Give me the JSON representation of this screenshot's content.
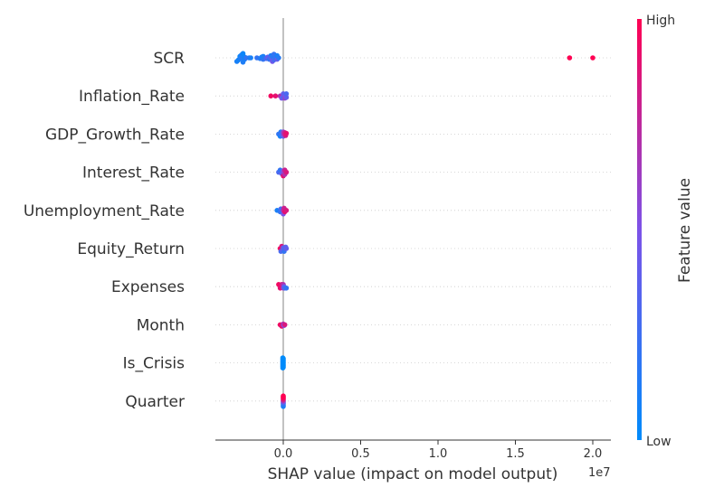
{
  "chart_data": {
    "type": "scatter",
    "subtype": "shap-beeswarm",
    "xlabel": "SHAP value (impact on model output)",
    "x_offset_text": "1e7",
    "x_ticks": [
      0,
      0.5,
      1.0,
      1.5,
      2.0
    ],
    "x_tick_labels": [
      "0.0",
      "0.5",
      "1.0",
      "1.5",
      "2.0"
    ],
    "xlim": [
      -0.45,
      2.1
    ],
    "x_unit_scale": "1e7",
    "colorbar": {
      "label": "Feature value",
      "high": "High",
      "low": "Low",
      "colors": {
        "low": "#008bfb",
        "mid": "#7c52e8",
        "high": "#ff0052"
      }
    },
    "grid": false,
    "features": [
      {
        "name": "SCR",
        "points": [
          {
            "x": -0.3,
            "y": 0.5,
            "v": 0.1
          },
          {
            "x": -0.29,
            "y": 0.3,
            "v": 0.08
          },
          {
            "x": -0.28,
            "y": -0.2,
            "v": 0.05
          },
          {
            "x": -0.28,
            "y": 0.1,
            "v": 0.1
          },
          {
            "x": -0.27,
            "y": 0.0,
            "v": 0.15
          },
          {
            "x": -0.27,
            "y": -0.4,
            "v": 0.1
          },
          {
            "x": -0.26,
            "y": 0.6,
            "v": 0.12
          },
          {
            "x": -0.26,
            "y": -0.6,
            "v": 0.05
          },
          {
            "x": -0.25,
            "y": 0.2,
            "v": 0.1
          },
          {
            "x": -0.25,
            "y": -0.1,
            "v": 0.05
          },
          {
            "x": -0.24,
            "y": 0.0,
            "v": 0.2
          },
          {
            "x": -0.22,
            "y": 0.0,
            "v": 0.15
          },
          {
            "x": -0.21,
            "y": 0.0,
            "v": 0.1
          },
          {
            "x": -0.17,
            "y": 0.0,
            "v": 0.2
          },
          {
            "x": -0.15,
            "y": 0.1,
            "v": 0.15
          },
          {
            "x": -0.14,
            "y": -0.1,
            "v": 0.1
          },
          {
            "x": -0.13,
            "y": 0.2,
            "v": 0.2
          },
          {
            "x": -0.13,
            "y": -0.2,
            "v": 0.1
          },
          {
            "x": -0.12,
            "y": 0.0,
            "v": 0.15
          },
          {
            "x": -0.11,
            "y": 0.1,
            "v": 0.3
          },
          {
            "x": -0.1,
            "y": -0.1,
            "v": 0.4
          },
          {
            "x": -0.09,
            "y": 0.2,
            "v": 0.2
          },
          {
            "x": -0.08,
            "y": -0.3,
            "v": 0.1
          },
          {
            "x": -0.08,
            "y": 0.0,
            "v": 0.35
          },
          {
            "x": -0.07,
            "y": 0.5,
            "v": 0.45
          },
          {
            "x": -0.07,
            "y": -0.2,
            "v": 0.15
          },
          {
            "x": -0.06,
            "y": 0.3,
            "v": 0.3
          },
          {
            "x": -0.06,
            "y": -0.5,
            "v": 0.2
          },
          {
            "x": -0.05,
            "y": 0.0,
            "v": 0.2
          },
          {
            "x": -0.04,
            "y": 0.2,
            "v": 0.4
          },
          {
            "x": -0.04,
            "y": -0.3,
            "v": 0.1
          },
          {
            "x": -0.03,
            "y": 0.0,
            "v": 0.15
          },
          {
            "x": 1.85,
            "y": 0.0,
            "v": 1.0
          },
          {
            "x": 2.0,
            "y": 0.0,
            "v": 1.0
          }
        ]
      },
      {
        "name": "Inflation_Rate",
        "points": [
          {
            "x": -0.08,
            "y": 0.0,
            "v": 0.95
          },
          {
            "x": -0.05,
            "y": 0.0,
            "v": 0.9
          },
          {
            "x": -0.02,
            "y": 0.0,
            "v": 0.7
          },
          {
            "x": -0.01,
            "y": 0.3,
            "v": 0.5
          },
          {
            "x": 0.0,
            "y": -0.3,
            "v": 0.4
          },
          {
            "x": 0.0,
            "y": 0.2,
            "v": 0.3
          },
          {
            "x": 0.005,
            "y": -0.1,
            "v": 0.45
          },
          {
            "x": 0.01,
            "y": 0.3,
            "v": 0.6
          },
          {
            "x": 0.01,
            "y": -0.2,
            "v": 0.35
          },
          {
            "x": 0.015,
            "y": 0.0,
            "v": 0.5
          },
          {
            "x": 0.02,
            "y": 0.2,
            "v": 0.4
          },
          {
            "x": 0.02,
            "y": -0.3,
            "v": 0.3
          }
        ]
      },
      {
        "name": "GDP_Growth_Rate",
        "points": [
          {
            "x": -0.03,
            "y": 0.0,
            "v": 0.2
          },
          {
            "x": -0.02,
            "y": 0.3,
            "v": 0.1
          },
          {
            "x": -0.015,
            "y": -0.3,
            "v": 0.15
          },
          {
            "x": -0.01,
            "y": 0.0,
            "v": 0.3
          },
          {
            "x": 0.0,
            "y": 0.3,
            "v": 0.4
          },
          {
            "x": 0.0,
            "y": -0.3,
            "v": 0.6
          },
          {
            "x": 0.005,
            "y": 0.0,
            "v": 0.7
          },
          {
            "x": 0.01,
            "y": -0.2,
            "v": 0.8
          },
          {
            "x": 0.015,
            "y": 0.2,
            "v": 0.85
          },
          {
            "x": 0.02,
            "y": -0.1,
            "v": 0.9
          }
        ]
      },
      {
        "name": "Interest_Rate",
        "points": [
          {
            "x": -0.03,
            "y": 0.0,
            "v": 0.3
          },
          {
            "x": -0.02,
            "y": -0.3,
            "v": 0.2
          },
          {
            "x": -0.01,
            "y": 0.2,
            "v": 0.4
          },
          {
            "x": 0.0,
            "y": 0.5,
            "v": 0.9
          },
          {
            "x": 0.0,
            "y": -0.2,
            "v": 0.5
          },
          {
            "x": 0.005,
            "y": 0.0,
            "v": 0.6
          },
          {
            "x": 0.01,
            "y": 0.3,
            "v": 0.7
          },
          {
            "x": 0.01,
            "y": -0.3,
            "v": 0.8
          },
          {
            "x": 0.02,
            "y": 0.0,
            "v": 0.85
          }
        ]
      },
      {
        "name": "Unemployment_Rate",
        "points": [
          {
            "x": -0.04,
            "y": 0.0,
            "v": 0.1
          },
          {
            "x": -0.02,
            "y": 0.2,
            "v": 0.2
          },
          {
            "x": -0.015,
            "y": -0.2,
            "v": 0.3
          },
          {
            "x": 0.0,
            "y": 0.5,
            "v": 0.5
          },
          {
            "x": 0.0,
            "y": 0.0,
            "v": 0.7
          },
          {
            "x": 0.005,
            "y": -0.3,
            "v": 0.8
          },
          {
            "x": 0.01,
            "y": 0.2,
            "v": 0.9
          },
          {
            "x": 0.02,
            "y": 0.0,
            "v": 0.85
          }
        ]
      },
      {
        "name": "Equity_Return",
        "points": [
          {
            "x": -0.02,
            "y": 0.0,
            "v": 0.95
          },
          {
            "x": -0.015,
            "y": 0.4,
            "v": 0.3
          },
          {
            "x": -0.01,
            "y": -0.3,
            "v": 0.85
          },
          {
            "x": 0.0,
            "y": 0.2,
            "v": 0.5
          },
          {
            "x": 0.0,
            "y": -0.1,
            "v": 0.4
          },
          {
            "x": 0.005,
            "y": 0.4,
            "v": 0.2
          },
          {
            "x": 0.01,
            "y": 0.0,
            "v": 0.3
          },
          {
            "x": 0.015,
            "y": -0.2,
            "v": 0.35
          },
          {
            "x": 0.02,
            "y": 0.0,
            "v": 0.4
          }
        ]
      },
      {
        "name": "Expenses",
        "points": [
          {
            "x": -0.03,
            "y": -0.3,
            "v": 0.95
          },
          {
            "x": -0.02,
            "y": 0.2,
            "v": 0.9
          },
          {
            "x": -0.01,
            "y": -0.3,
            "v": 0.85
          },
          {
            "x": 0.0,
            "y": 0.2,
            "v": 0.6
          },
          {
            "x": 0.0,
            "y": -0.3,
            "v": 0.7
          },
          {
            "x": 0.005,
            "y": 0.0,
            "v": 0.4
          },
          {
            "x": 0.01,
            "y": 0.2,
            "v": 0.3
          },
          {
            "x": 0.02,
            "y": 0.2,
            "v": 0.2
          }
        ]
      },
      {
        "name": "Month",
        "points": [
          {
            "x": -0.02,
            "y": 0.0,
            "v": 0.95
          },
          {
            "x": -0.01,
            "y": 0.2,
            "v": 0.9
          },
          {
            "x": 0.0,
            "y": -0.1,
            "v": 0.7
          },
          {
            "x": 0.005,
            "y": 0.1,
            "v": 0.5
          },
          {
            "x": 0.01,
            "y": 0.0,
            "v": 0.85
          }
        ]
      },
      {
        "name": "Is_Crisis",
        "points": [
          {
            "x": -0.003,
            "y": 0.7,
            "v": 0.0
          },
          {
            "x": -0.003,
            "y": 0.5,
            "v": 0.0
          },
          {
            "x": -0.003,
            "y": 0.3,
            "v": 0.0
          },
          {
            "x": -0.003,
            "y": 0.1,
            "v": 0.0
          },
          {
            "x": -0.003,
            "y": -0.1,
            "v": 0.0
          },
          {
            "x": -0.003,
            "y": -0.3,
            "v": 0.0
          },
          {
            "x": -0.003,
            "y": -0.5,
            "v": 0.0
          },
          {
            "x": -0.003,
            "y": -0.7,
            "v": 0.0
          },
          {
            "x": 0.0,
            "y": 0.6,
            "v": 0.0
          },
          {
            "x": 0.0,
            "y": 0.4,
            "v": 0.0
          },
          {
            "x": 0.0,
            "y": 0.2,
            "v": 0.0
          },
          {
            "x": 0.0,
            "y": 0.0,
            "v": 0.0
          },
          {
            "x": 0.0,
            "y": -0.2,
            "v": 0.0
          },
          {
            "x": 0.0,
            "y": -0.4,
            "v": 0.0
          },
          {
            "x": 0.0,
            "y": -0.6,
            "v": 0.0
          }
        ]
      },
      {
        "name": "Quarter",
        "points": [
          {
            "x": 0.0,
            "y": 0.75,
            "v": 0.1
          },
          {
            "x": 0.0,
            "y": 0.55,
            "v": 0.15
          },
          {
            "x": 0.0,
            "y": 0.35,
            "v": 0.2
          },
          {
            "x": 0.0,
            "y": 0.2,
            "v": 0.35
          },
          {
            "x": 0.0,
            "y": 0.05,
            "v": 0.55
          },
          {
            "x": 0.0,
            "y": -0.1,
            "v": 0.75
          },
          {
            "x": 0.0,
            "y": -0.25,
            "v": 0.85
          },
          {
            "x": 0.0,
            "y": -0.4,
            "v": 0.95
          },
          {
            "x": 0.0,
            "y": -0.55,
            "v": 1.0
          },
          {
            "x": 0.0,
            "y": -0.7,
            "v": 1.0
          }
        ]
      }
    ]
  }
}
